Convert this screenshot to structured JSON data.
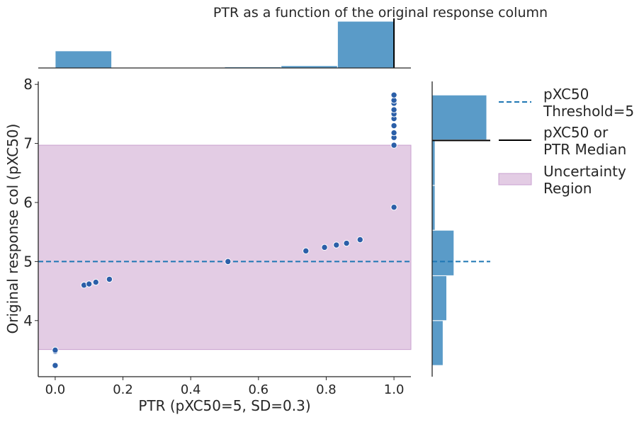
{
  "chart_data": {
    "type": "scatter",
    "title": "PTR as a function of the original response column",
    "xlabel": "PTR (pXC50=5, SD=0.3)",
    "ylabel": "Original response col (pXC50)",
    "xlim": [
      -0.05,
      1.05
    ],
    "ylim": [
      3.05,
      8.05
    ],
    "x_ticks": [
      "0.0",
      "0.2",
      "0.4",
      "0.6",
      "0.8",
      "1.0"
    ],
    "y_ticks": [
      "4",
      "5",
      "6",
      "7",
      "8"
    ],
    "grid": false,
    "legend_position": "upper-right-outside",
    "colors": {
      "points": "#2b5fa8",
      "hist": "#5a9bc8",
      "threshold": "#1f77b4",
      "median": "#000000",
      "uncertainty": "#e3cce4",
      "uncertainty_edge": "#c9a0d0"
    },
    "points": [
      {
        "x": 0.0,
        "y": 3.24
      },
      {
        "x": 0.0,
        "y": 3.48
      },
      {
        "x": 0.0,
        "y": 3.5
      },
      {
        "x": 0.085,
        "y": 4.6
      },
      {
        "x": 0.1,
        "y": 4.62
      },
      {
        "x": 0.12,
        "y": 4.65
      },
      {
        "x": 0.16,
        "y": 4.7
      },
      {
        "x": 0.51,
        "y": 5.0
      },
      {
        "x": 0.74,
        "y": 5.18
      },
      {
        "x": 0.795,
        "y": 5.24
      },
      {
        "x": 0.83,
        "y": 5.28
      },
      {
        "x": 0.86,
        "y": 5.31
      },
      {
        "x": 0.9,
        "y": 5.37
      },
      {
        "x": 1.0,
        "y": 5.92
      },
      {
        "x": 1.0,
        "y": 6.97
      },
      {
        "x": 1.0,
        "y": 7.1
      },
      {
        "x": 1.0,
        "y": 7.18
      },
      {
        "x": 1.0,
        "y": 7.3
      },
      {
        "x": 1.0,
        "y": 7.42
      },
      {
        "x": 1.0,
        "y": 7.5
      },
      {
        "x": 1.0,
        "y": 7.57
      },
      {
        "x": 1.0,
        "y": 7.68
      },
      {
        "x": 1.0,
        "y": 7.73
      },
      {
        "x": 1.0,
        "y": 7.82
      }
    ],
    "threshold": 5,
    "median_x": 1.0,
    "median_y": 7.05,
    "uncertainty_region": [
      3.51,
      6.97
    ],
    "top_histogram": [
      {
        "x0": 0.0,
        "x1": 0.1667,
        "count": 3
      },
      {
        "x0": 0.1667,
        "x1": 0.3333,
        "count": 0
      },
      {
        "x0": 0.3333,
        "x1": 0.5,
        "count": 0
      },
      {
        "x0": 0.5,
        "x1": 0.6667,
        "count": 0.2
      },
      {
        "x0": 0.6667,
        "x1": 0.8333,
        "count": 0.4
      },
      {
        "x0": 0.8333,
        "x1": 1.0,
        "count": 8.2
      }
    ],
    "right_histogram": [
      {
        "y0": 3.24,
        "y1": 4.0,
        "count": 3
      },
      {
        "y0": 4.0,
        "y1": 4.76,
        "count": 4
      },
      {
        "y0": 4.76,
        "y1": 5.53,
        "count": 6
      },
      {
        "y0": 5.53,
        "y1": 6.29,
        "count": 0.8
      },
      {
        "y0": 6.29,
        "y1": 7.06,
        "count": 0.8
      },
      {
        "y0": 7.06,
        "y1": 7.82,
        "count": 15
      }
    ],
    "legend": [
      {
        "label": "pXC50\nThreshold=5",
        "style": "dashed"
      },
      {
        "label": "pXC50 or\nPTR Median",
        "style": "solid"
      },
      {
        "label": "Uncertainty\nRegion",
        "style": "patch"
      }
    ]
  }
}
